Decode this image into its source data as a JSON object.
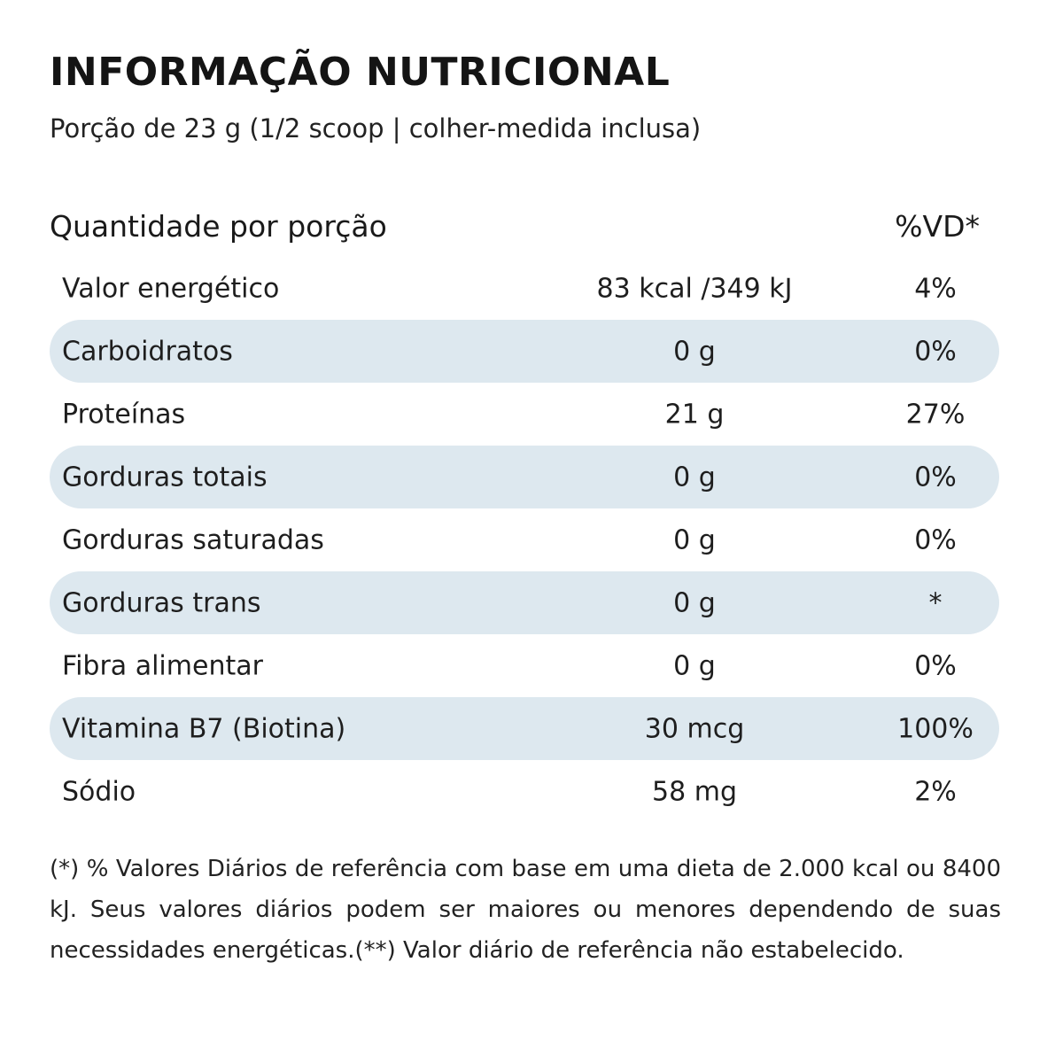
{
  "title": "INFORMAÇÃO NUTRICIONAL",
  "serving": "Porção de 23 g (1/2 scoop | colher-medida inclusa)",
  "header": {
    "quantity_label": "Quantidade por porção",
    "dv_label": "%VD*"
  },
  "rows": [
    {
      "name": "Valor energético",
      "amount": "83 kcal /349 kJ",
      "dv": "4%"
    },
    {
      "name": "Carboidratos",
      "amount": "0 g",
      "dv": "0%"
    },
    {
      "name": "Proteínas",
      "amount": "21 g",
      "dv": "27%"
    },
    {
      "name": "Gorduras totais",
      "amount": "0 g",
      "dv": "0%"
    },
    {
      "name": "Gorduras saturadas",
      "amount": "0 g",
      "dv": "0%"
    },
    {
      "name": "Gorduras trans",
      "amount": "0 g",
      "dv": "*"
    },
    {
      "name": "Fibra alimentar",
      "amount": "0 g",
      "dv": "0%"
    },
    {
      "name": "Vitamina B7 (Biotina)",
      "amount": "30 mcg",
      "dv": "100%"
    },
    {
      "name": "Sódio",
      "amount": "58 mg",
      "dv": "2%"
    }
  ],
  "footnote": "(*) % Valores Diários de referência com base em uma dieta de 2.000 kcal ou 8400 kJ. Seus valores diários podem ser maiores ou menores dependendo de suas necessidades energéticas.(**) Valor diário de referência não estabelecido.",
  "colors": {
    "row_shade": "#dde8ef",
    "text": "#1e1e1e"
  }
}
